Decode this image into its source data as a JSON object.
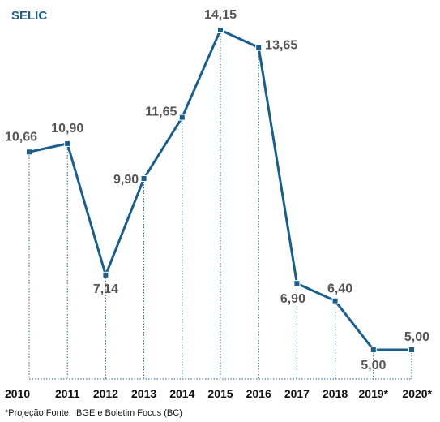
{
  "footnote": "*Projeção    Fonte: IBGE e Boletim Focus (BC)",
  "chart_data": {
    "type": "line",
    "title": "SELIC",
    "categories": [
      "2010",
      "2011",
      "2012",
      "2013",
      "2014",
      "2015",
      "2016",
      "2017",
      "2018",
      "2019*",
      "2020*"
    ],
    "values": [
      10.66,
      10.9,
      7.14,
      9.9,
      11.65,
      14.15,
      13.65,
      6.9,
      6.4,
      5.0,
      5.0
    ],
    "value_labels": [
      "10,66",
      "10,90",
      "7,14",
      "9,90",
      "11,65",
      "14,15",
      "13,65",
      "6,90",
      "6,40",
      "5,00",
      "5,00"
    ],
    "xlabel": "",
    "ylabel": "",
    "grid": false,
    "legend": "none",
    "line_color": "#1a5f8c",
    "title_color": "#1a5f8c",
    "label_color": "#555555"
  }
}
